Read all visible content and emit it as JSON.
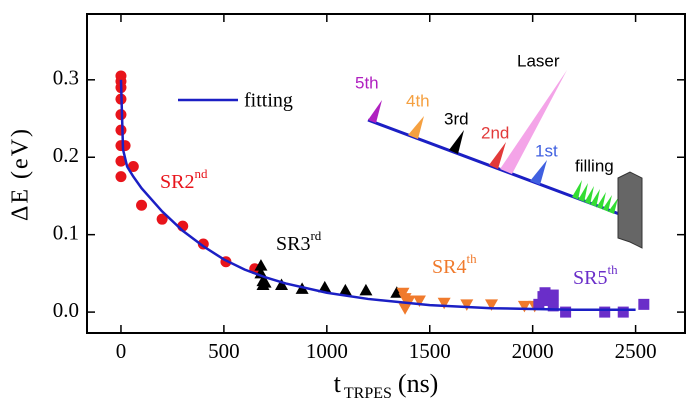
{
  "chart_data": {
    "type": "scatter",
    "xlabel": {
      "text": "t",
      "sub": "TRPES",
      "unit": "(ns)"
    },
    "ylabel": "ΔE (eV)",
    "xlim": [
      -165,
      2740
    ],
    "ylim": [
      -0.027,
      0.385
    ],
    "xticks": [
      0,
      500,
      1000,
      1500,
      2000,
      2500
    ],
    "yticks": [
      {
        "value": 0,
        "label": "0.0"
      },
      0.1,
      0.2,
      0.3
    ],
    "series": [
      {
        "marker": "circle",
        "color": "#e8141b",
        "x": [
          0,
          0,
          0,
          0,
          0,
          0,
          0,
          0,
          0,
          20,
          60,
          100,
          200,
          300,
          400,
          510,
          650
        ],
        "y": [
          0.305,
          0.298,
          0.29,
          0.275,
          0.255,
          0.235,
          0.215,
          0.195,
          0.175,
          0.215,
          0.188,
          0.138,
          0.12,
          0.111,
          0.088,
          0.065,
          0.056
        ]
      },
      {
        "marker": "triangle-up",
        "color": "#000000",
        "x": [
          680,
          680,
          690,
          690,
          700,
          780,
          880,
          990,
          1090,
          1190,
          1340
        ],
        "y": [
          0.06,
          0.05,
          0.04,
          0.035,
          0.038,
          0.035,
          0.03,
          0.032,
          0.028,
          0.028,
          0.025
        ]
      },
      {
        "marker": "triangle-down",
        "color": "#f07a2c",
        "x": [
          1370,
          1380,
          1380,
          1400,
          1450,
          1570,
          1680,
          1800,
          1960,
          2010
        ],
        "y": [
          0.025,
          0.018,
          0.005,
          0.015,
          0.015,
          0.012,
          0.01,
          0.01,
          0.008,
          0.008
        ]
      },
      {
        "marker": "square",
        "color": "#6a2ec9",
        "x": [
          2030,
          2050,
          2060,
          2060,
          2100,
          2100,
          2160,
          2350,
          2440,
          2540
        ],
        "y": [
          0.01,
          0.02,
          0.025,
          0.015,
          0.022,
          0.008,
          0.0,
          0.0,
          0.0,
          0.01
        ]
      },
      {
        "marker": "line",
        "name": "fitting",
        "color": "#1b1fc4",
        "x": [
          0,
          10,
          30,
          60,
          100,
          200,
          300,
          400,
          500,
          600,
          700,
          800,
          1000,
          1200,
          1500,
          1800,
          2000,
          2200,
          2500
        ],
        "y": [
          0.3,
          0.21,
          0.188,
          0.175,
          0.16,
          0.13,
          0.105,
          0.085,
          0.068,
          0.055,
          0.045,
          0.037,
          0.025,
          0.017,
          0.009,
          0.005,
          0.004,
          0.003,
          0.003
        ]
      }
    ],
    "annotations": [
      {
        "text": "SR2",
        "sup": "nd",
        "color": "#e8141b"
      },
      {
        "text": "SR3",
        "sup": "rd",
        "color": "#000000"
      },
      {
        "text": "SR4",
        "sup": "th",
        "color": "#f07a2c"
      },
      {
        "text": "SR5",
        "sup": "th",
        "color": "#6a2ec9"
      }
    ],
    "inset": {
      "laser": "Laser",
      "fifth": "5th",
      "fourth": "4th",
      "third": "3rd",
      "second": "2nd",
      "first": "1st",
      "filling": "filling"
    }
  }
}
